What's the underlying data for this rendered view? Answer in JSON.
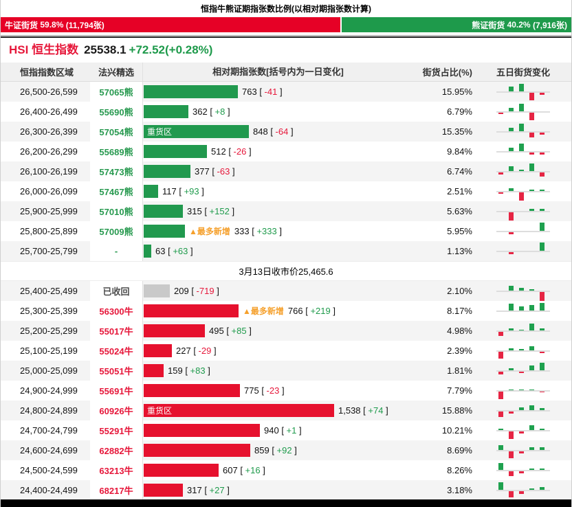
{
  "page": {
    "title": "恒指牛熊证期指张数比例(以相对期指张数计算)"
  },
  "ratio_bar": {
    "bull": {
      "label": "牛证街货",
      "pct": "59.8%",
      "count": "(11,794张)",
      "width_pct": 59.8
    },
    "bear": {
      "label": "熊证街货",
      "pct": "40.2%",
      "count": "(7,916张)",
      "width_pct": 40.2
    }
  },
  "index_info": {
    "symbol": "HSI",
    "name": "恒生指数",
    "price": "25538.1",
    "change": "+72.52(+0.28%)"
  },
  "table": {
    "columns": [
      "恒指指数区域",
      "法兴精选",
      "相对期指张数[括号内为一日变化]",
      "街货占比(%)",
      "五日街货变化"
    ],
    "divider_text": "3月13日收市价25,465.6",
    "bracket_open": " [ ",
    "bracket_close": " ]",
    "bar_scale": 0.18,
    "bear_rows": [
      {
        "range": "26,500-26,599",
        "code": "57065熊",
        "code_class": "bear",
        "bar_value": 763,
        "bar_color": "green",
        "value": "763",
        "change": "-41",
        "pct": "15.95%",
        "five_day": [
          0,
          7,
          11,
          -11,
          -3
        ]
      },
      {
        "range": "26,400-26,499",
        "code": "55690熊",
        "code_class": "bear",
        "bar_value": 362,
        "bar_color": "green",
        "value": "362",
        "change": "+8",
        "pct": "6.79%",
        "five_day": [
          -2,
          5,
          11,
          -11,
          0
        ]
      },
      {
        "range": "26,300-26,399",
        "code": "57054熊",
        "code_class": "bear",
        "bar_value": 848,
        "bar_color": "green",
        "value": "848",
        "change": "-64",
        "pct": "15.35%",
        "heavy_label": "重货区",
        "five_day": [
          0,
          5,
          11,
          -7,
          -3
        ]
      },
      {
        "range": "26,200-26,299",
        "code": "55689熊",
        "code_class": "bear",
        "bar_value": 512,
        "bar_color": "green",
        "value": "512",
        "change": "-26",
        "pct": "9.84%",
        "five_day": [
          0,
          5,
          11,
          -3,
          -3
        ]
      },
      {
        "range": "26,100-26,199",
        "code": "57473熊",
        "code_class": "bear",
        "bar_value": 377,
        "bar_color": "green",
        "value": "377",
        "change": "-63",
        "pct": "6.74%",
        "five_day": [
          -3,
          7,
          2,
          11,
          -6
        ]
      },
      {
        "range": "26,000-26,099",
        "code": "57467熊",
        "code_class": "bear",
        "bar_value": 117,
        "bar_color": "green",
        "value": "117",
        "change": "+93",
        "pct": "2.51%",
        "five_day": [
          -2,
          4,
          -12,
          2,
          2
        ]
      },
      {
        "range": "25,900-25,999",
        "code": "57010熊",
        "code_class": "bear",
        "bar_value": 315,
        "bar_color": "green",
        "value": "315",
        "change": "+152",
        "pct": "5.63%",
        "five_day": [
          0,
          -12,
          0,
          3,
          3
        ]
      },
      {
        "range": "25,800-25,899",
        "code": "57009熊",
        "code_class": "bear",
        "bar_value": 333,
        "bar_color": "green",
        "value": "333",
        "change": "+333",
        "pct": "5.95%",
        "max_new_label": "▲最多新增",
        "five_day": [
          0,
          -3,
          0,
          0,
          12
        ]
      },
      {
        "range": "25,700-25,799",
        "code": "-",
        "code_class": "dash",
        "bar_value": 63,
        "bar_color": "green",
        "value": "63",
        "change": "+63",
        "pct": "1.13%",
        "five_day": [
          0,
          -3,
          0,
          0,
          12
        ]
      }
    ],
    "bull_rows": [
      {
        "range": "25,400-25,499",
        "code": "已收回",
        "code_class": "recalled",
        "bar_value": 209,
        "bar_color": "gray",
        "value": "209",
        "change": "-719",
        "pct": "2.10%",
        "five_day": [
          0,
          7,
          4,
          2,
          -13
        ]
      },
      {
        "range": "25,300-25,399",
        "code": "56300牛",
        "code_class": "bull",
        "bar_value": 766,
        "bar_color": "red",
        "value": "766",
        "change": "+219",
        "pct": "8.17%",
        "max_new_label": "▲最多新增",
        "five_day": [
          0,
          10,
          6,
          8,
          11
        ]
      },
      {
        "range": "25,200-25,299",
        "code": "55017牛",
        "code_class": "bull",
        "bar_value": 495,
        "bar_color": "red",
        "value": "495",
        "change": "+85",
        "pct": "4.98%",
        "five_day": [
          -6,
          3,
          1,
          10,
          3
        ]
      },
      {
        "range": "25,100-25,199",
        "code": "55024牛",
        "code_class": "bull",
        "bar_value": 227,
        "bar_color": "red",
        "value": "227",
        "change": "-29",
        "pct": "2.39%",
        "five_day": [
          -10,
          3,
          2,
          6,
          -2
        ]
      },
      {
        "range": "25,000-25,099",
        "code": "55051牛",
        "code_class": "bull",
        "bar_value": 159,
        "bar_color": "red",
        "value": "159",
        "change": "+83",
        "pct": "1.81%",
        "five_day": [
          -4,
          3,
          -2,
          7,
          11
        ]
      },
      {
        "range": "24,900-24,999",
        "code": "55691牛",
        "code_class": "bull",
        "bar_value": 775,
        "bar_color": "red",
        "value": "775",
        "change": "-23",
        "pct": "7.79%",
        "five_day": [
          -11,
          1,
          1,
          1,
          -1
        ]
      },
      {
        "range": "24,800-24,899",
        "code": "60926牛",
        "code_class": "bull",
        "bar_value": 1538,
        "bar_color": "red",
        "value": "1,538",
        "change": "+74",
        "pct": "15.88%",
        "heavy_label": "重货区",
        "five_day": [
          -8,
          -3,
          4,
          7,
          3
        ]
      },
      {
        "range": "24,700-24,799",
        "code": "55291牛",
        "code_class": "bull",
        "bar_value": 940,
        "bar_color": "red",
        "value": "940",
        "change": "+1",
        "pct": "10.21%",
        "five_day": [
          2,
          -11,
          -3,
          7,
          2
        ]
      },
      {
        "range": "24,600-24,699",
        "code": "62882牛",
        "code_class": "bull",
        "bar_value": 859,
        "bar_color": "red",
        "value": "859",
        "change": "+92",
        "pct": "8.69%",
        "five_day": [
          7,
          -10,
          -3,
          4,
          4
        ]
      },
      {
        "range": "24,500-24,599",
        "code": "63213牛",
        "code_class": "bull",
        "bar_value": 607,
        "bar_color": "red",
        "value": "607",
        "change": "+16",
        "pct": "8.26%",
        "five_day": [
          10,
          -7,
          -3,
          2,
          2
        ]
      },
      {
        "range": "24,400-24,499",
        "code": "68217牛",
        "code_class": "bull",
        "bar_value": 317,
        "bar_color": "red",
        "value": "317",
        "change": "+27",
        "pct": "3.18%",
        "five_day": [
          11,
          -9,
          -4,
          2,
          4
        ]
      }
    ]
  },
  "colors": {
    "bull_red": "#e60126",
    "bear_green": "#1e9a4b",
    "bar_green": "#21994e",
    "bar_red": "#e6112e",
    "bar_gray": "#c9c9c9",
    "neg_red": "#e6173a",
    "pos_green": "#1e9a4b",
    "max_new_orange": "#f5a02c"
  },
  "chart_data": {
    "type": "bar",
    "title": "恒指牛熊证期指张数比例(以相对期指张数计算)",
    "subtitle": "HSI 恒生指数 25538.1 +72.52(+0.28%)",
    "close_note": "3月13日收市价25,465.6",
    "close_price": 25465.6,
    "ratio": {
      "bull_pct": 59.8,
      "bull_count": 11794,
      "bear_pct": 40.2,
      "bear_count": 7916
    },
    "xlabel": "相对期指张数[括号内为一日变化]",
    "categories": [
      "26,500-26,599",
      "26,400-26,499",
      "26,300-26,399",
      "26,200-26,299",
      "26,100-26,199",
      "26,000-26,099",
      "25,900-25,999",
      "25,800-25,899",
      "25,700-25,799",
      "25,400-25,499",
      "25,300-25,399",
      "25,200-25,299",
      "25,100-25,199",
      "25,000-25,099",
      "24,900-24,999",
      "24,800-24,899",
      "24,700-24,799",
      "24,600-24,699",
      "24,500-24,599",
      "24,400-24,499"
    ],
    "series": [
      {
        "name": "相对期指张数",
        "values": [
          763,
          362,
          848,
          512,
          377,
          117,
          315,
          333,
          63,
          209,
          766,
          495,
          227,
          159,
          775,
          1538,
          940,
          859,
          607,
          317
        ]
      },
      {
        "name": "一日变化",
        "values": [
          -41,
          8,
          -64,
          -26,
          -63,
          93,
          152,
          333,
          63,
          -719,
          219,
          85,
          -29,
          83,
          -23,
          74,
          1,
          92,
          16,
          27
        ]
      },
      {
        "name": "街货占比(%)",
        "values": [
          15.95,
          6.79,
          15.35,
          9.84,
          6.74,
          2.51,
          5.63,
          5.95,
          1.13,
          2.1,
          8.17,
          4.98,
          2.39,
          1.81,
          7.79,
          15.88,
          10.21,
          8.69,
          8.26,
          3.18
        ]
      }
    ],
    "annotations": [
      "重货区: 26,300-26,399(熊), 24,800-24,899(牛)",
      "▲最多新增: 25,800-25,899(熊 +333), 25,300-25,399(牛 +219)",
      "已收回: 25,400-25,499"
    ],
    "legend_position": "none",
    "grid": false,
    "note": "每行附五日街货变化迷你柱图, 数值见 table.*_rows[].five_day (相对高度, 正=绿/负=红)"
  }
}
